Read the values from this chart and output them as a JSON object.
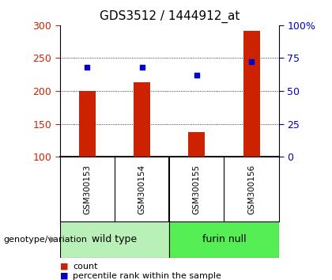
{
  "title": "GDS3512 / 1444912_at",
  "samples": [
    "GSM300153",
    "GSM300154",
    "GSM300155",
    "GSM300156"
  ],
  "group_names": [
    "wild type",
    "furin null"
  ],
  "group_sample_counts": [
    2,
    2
  ],
  "group_colors": [
    "#b8f0b8",
    "#55ee55"
  ],
  "counts": [
    200,
    213,
    137,
    291
  ],
  "percentile_ranks_pct": [
    68,
    68,
    62,
    72
  ],
  "y_min": 100,
  "y_max": 300,
  "y_ticks_left": [
    100,
    150,
    200,
    250,
    300
  ],
  "y_ticks_right_labels": [
    "0",
    "25",
    "50",
    "75",
    "100%"
  ],
  "y_ticks_right_pct": [
    0,
    25,
    50,
    75,
    100
  ],
  "bar_color": "#cc2200",
  "dot_color": "#0000cc",
  "bar_bottom": 100,
  "label_count": "count",
  "label_percentile": "percentile rank within the sample",
  "xlabel_genotype": "genotype/variation",
  "bg_color_samples": "#cccccc",
  "bg_color_plot": "#ffffff",
  "bar_width": 0.3
}
